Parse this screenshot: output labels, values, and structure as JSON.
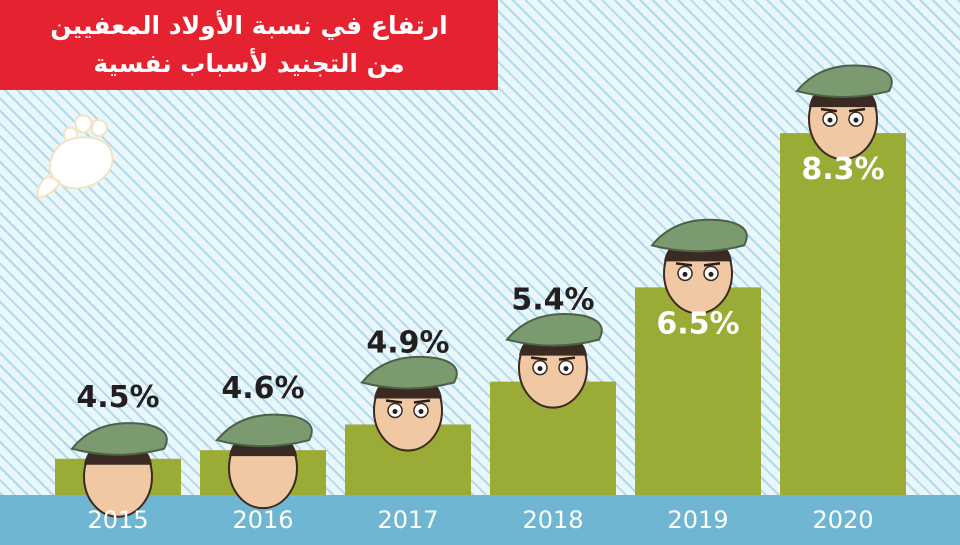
{
  "title": {
    "line1": "ارتفاع في نسبة الأولاد المعفيين",
    "line2": "من التجنيد لأسباب نفسية"
  },
  "logo": {
    "icon": "hand-logo-icon"
  },
  "colors": {
    "title_bg": "#e52330",
    "bar": "#9aab36",
    "axis_band": "#6fb6d2",
    "label_dark": "#231f20",
    "label_light": "#ffffff"
  },
  "chart_data": {
    "type": "bar",
    "title": "ارتفاع في نسبة الأولاد المعفيين من التجنيد لأسباب نفسية",
    "categories": [
      "2015",
      "2016",
      "2017",
      "2018",
      "2019",
      "2020"
    ],
    "values": [
      4.5,
      4.6,
      4.9,
      5.4,
      6.5,
      8.3
    ],
    "labels": [
      "4.5%",
      "4.6%",
      "4.9%",
      "5.4%",
      "6.5%",
      "8.3%"
    ],
    "unit": "%",
    "xlabel": "",
    "ylabel": "",
    "grid": false,
    "legend": "none"
  }
}
